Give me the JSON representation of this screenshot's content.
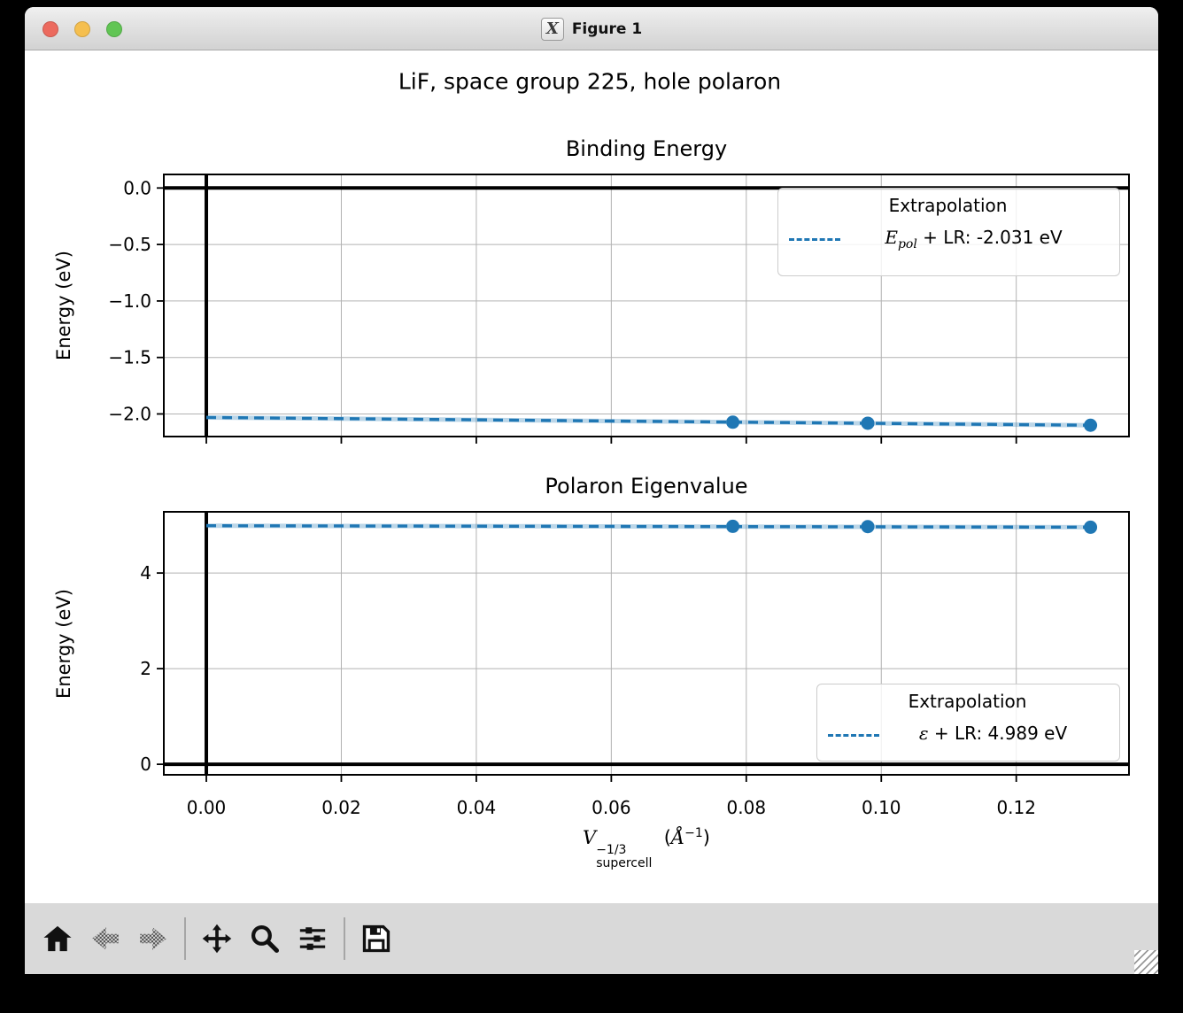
{
  "window": {
    "title": "Figure 1",
    "icon_glyph": "X",
    "traffic_lights": {
      "close": "#ec6a5e",
      "minimize": "#f5bf4f",
      "maximize": "#61c554"
    }
  },
  "figure": {
    "suptitle": "LiF, space group 225, hole polaron",
    "background": "#ffffff"
  },
  "xaxis": {
    "symbol": "V",
    "sup": "−1/3",
    "sub": "supercell",
    "unit_open": "(",
    "unit_symbol": "Å",
    "unit_sup": "−1",
    "unit_close": ")"
  },
  "chart_data": [
    {
      "type": "line",
      "title": "Binding Energy",
      "ylabel": "Energy (eV)",
      "xlim": [
        -0.0063,
        0.1367
      ],
      "ylim": [
        -2.2,
        0.12
      ],
      "grid": true,
      "zero_lines": {
        "horizontal": 0,
        "vertical": 0
      },
      "x_ticks": [
        0.0,
        0.02,
        0.04,
        0.06,
        0.08,
        0.1,
        0.12
      ],
      "x_tick_labels": [],
      "y_ticks": [
        0.0,
        -0.5,
        -1.0,
        -1.5,
        -2.0
      ],
      "y_tick_labels": [
        "0.0",
        "−0.5",
        "−1.0",
        "−1.5",
        "−2.0"
      ],
      "series": [
        {
          "name": "Epol + LR extrapolation",
          "color": "#1f77b4",
          "linestyle": "dashed",
          "line": {
            "x": [
              0.0,
              0.131
            ],
            "y": [
              -2.031,
              -2.1
            ]
          },
          "markers": {
            "x": [
              0.078,
              0.098,
              0.131
            ],
            "y": [
              -2.073,
              -2.082,
              -2.1
            ]
          }
        }
      ],
      "legend": {
        "title": "Extrapolation",
        "position": "upper right",
        "symbol": "E",
        "subscript": "pol",
        "label_rest": " + LR: -2.031 eV"
      }
    },
    {
      "type": "line",
      "title": "Polaron Eigenvalue",
      "ylabel": "Energy (eV)",
      "xlim": [
        -0.0063,
        0.1367
      ],
      "ylim": [
        -0.22,
        5.28
      ],
      "grid": true,
      "zero_lines": {
        "horizontal": 0,
        "vertical": 0
      },
      "x_ticks": [
        0.0,
        0.02,
        0.04,
        0.06,
        0.08,
        0.1,
        0.12
      ],
      "x_tick_labels": [
        "0.00",
        "0.02",
        "0.04",
        "0.06",
        "0.08",
        "0.10",
        "0.12"
      ],
      "y_ticks": [
        0,
        2,
        4
      ],
      "y_tick_labels": [
        "0",
        "2",
        "4"
      ],
      "series": [
        {
          "name": "eps + LR extrapolation",
          "color": "#1f77b4",
          "linestyle": "dashed",
          "line": {
            "x": [
              0.0,
              0.131
            ],
            "y": [
              4.989,
              4.958
            ]
          },
          "markers": {
            "x": [
              0.078,
              0.098,
              0.131
            ],
            "y": [
              4.976,
              4.97,
              4.958
            ]
          }
        }
      ],
      "legend": {
        "title": "Extrapolation",
        "position": "lower right",
        "symbol": "ε",
        "subscript": "",
        "label_rest": " + LR: 4.989 eV"
      }
    }
  ],
  "toolbar": {
    "background": "#d9d9d9",
    "icons": [
      "home-icon",
      "back-icon",
      "forward-icon",
      "pan-icon",
      "zoom-icon",
      "subplots-icon",
      "save-icon"
    ]
  }
}
